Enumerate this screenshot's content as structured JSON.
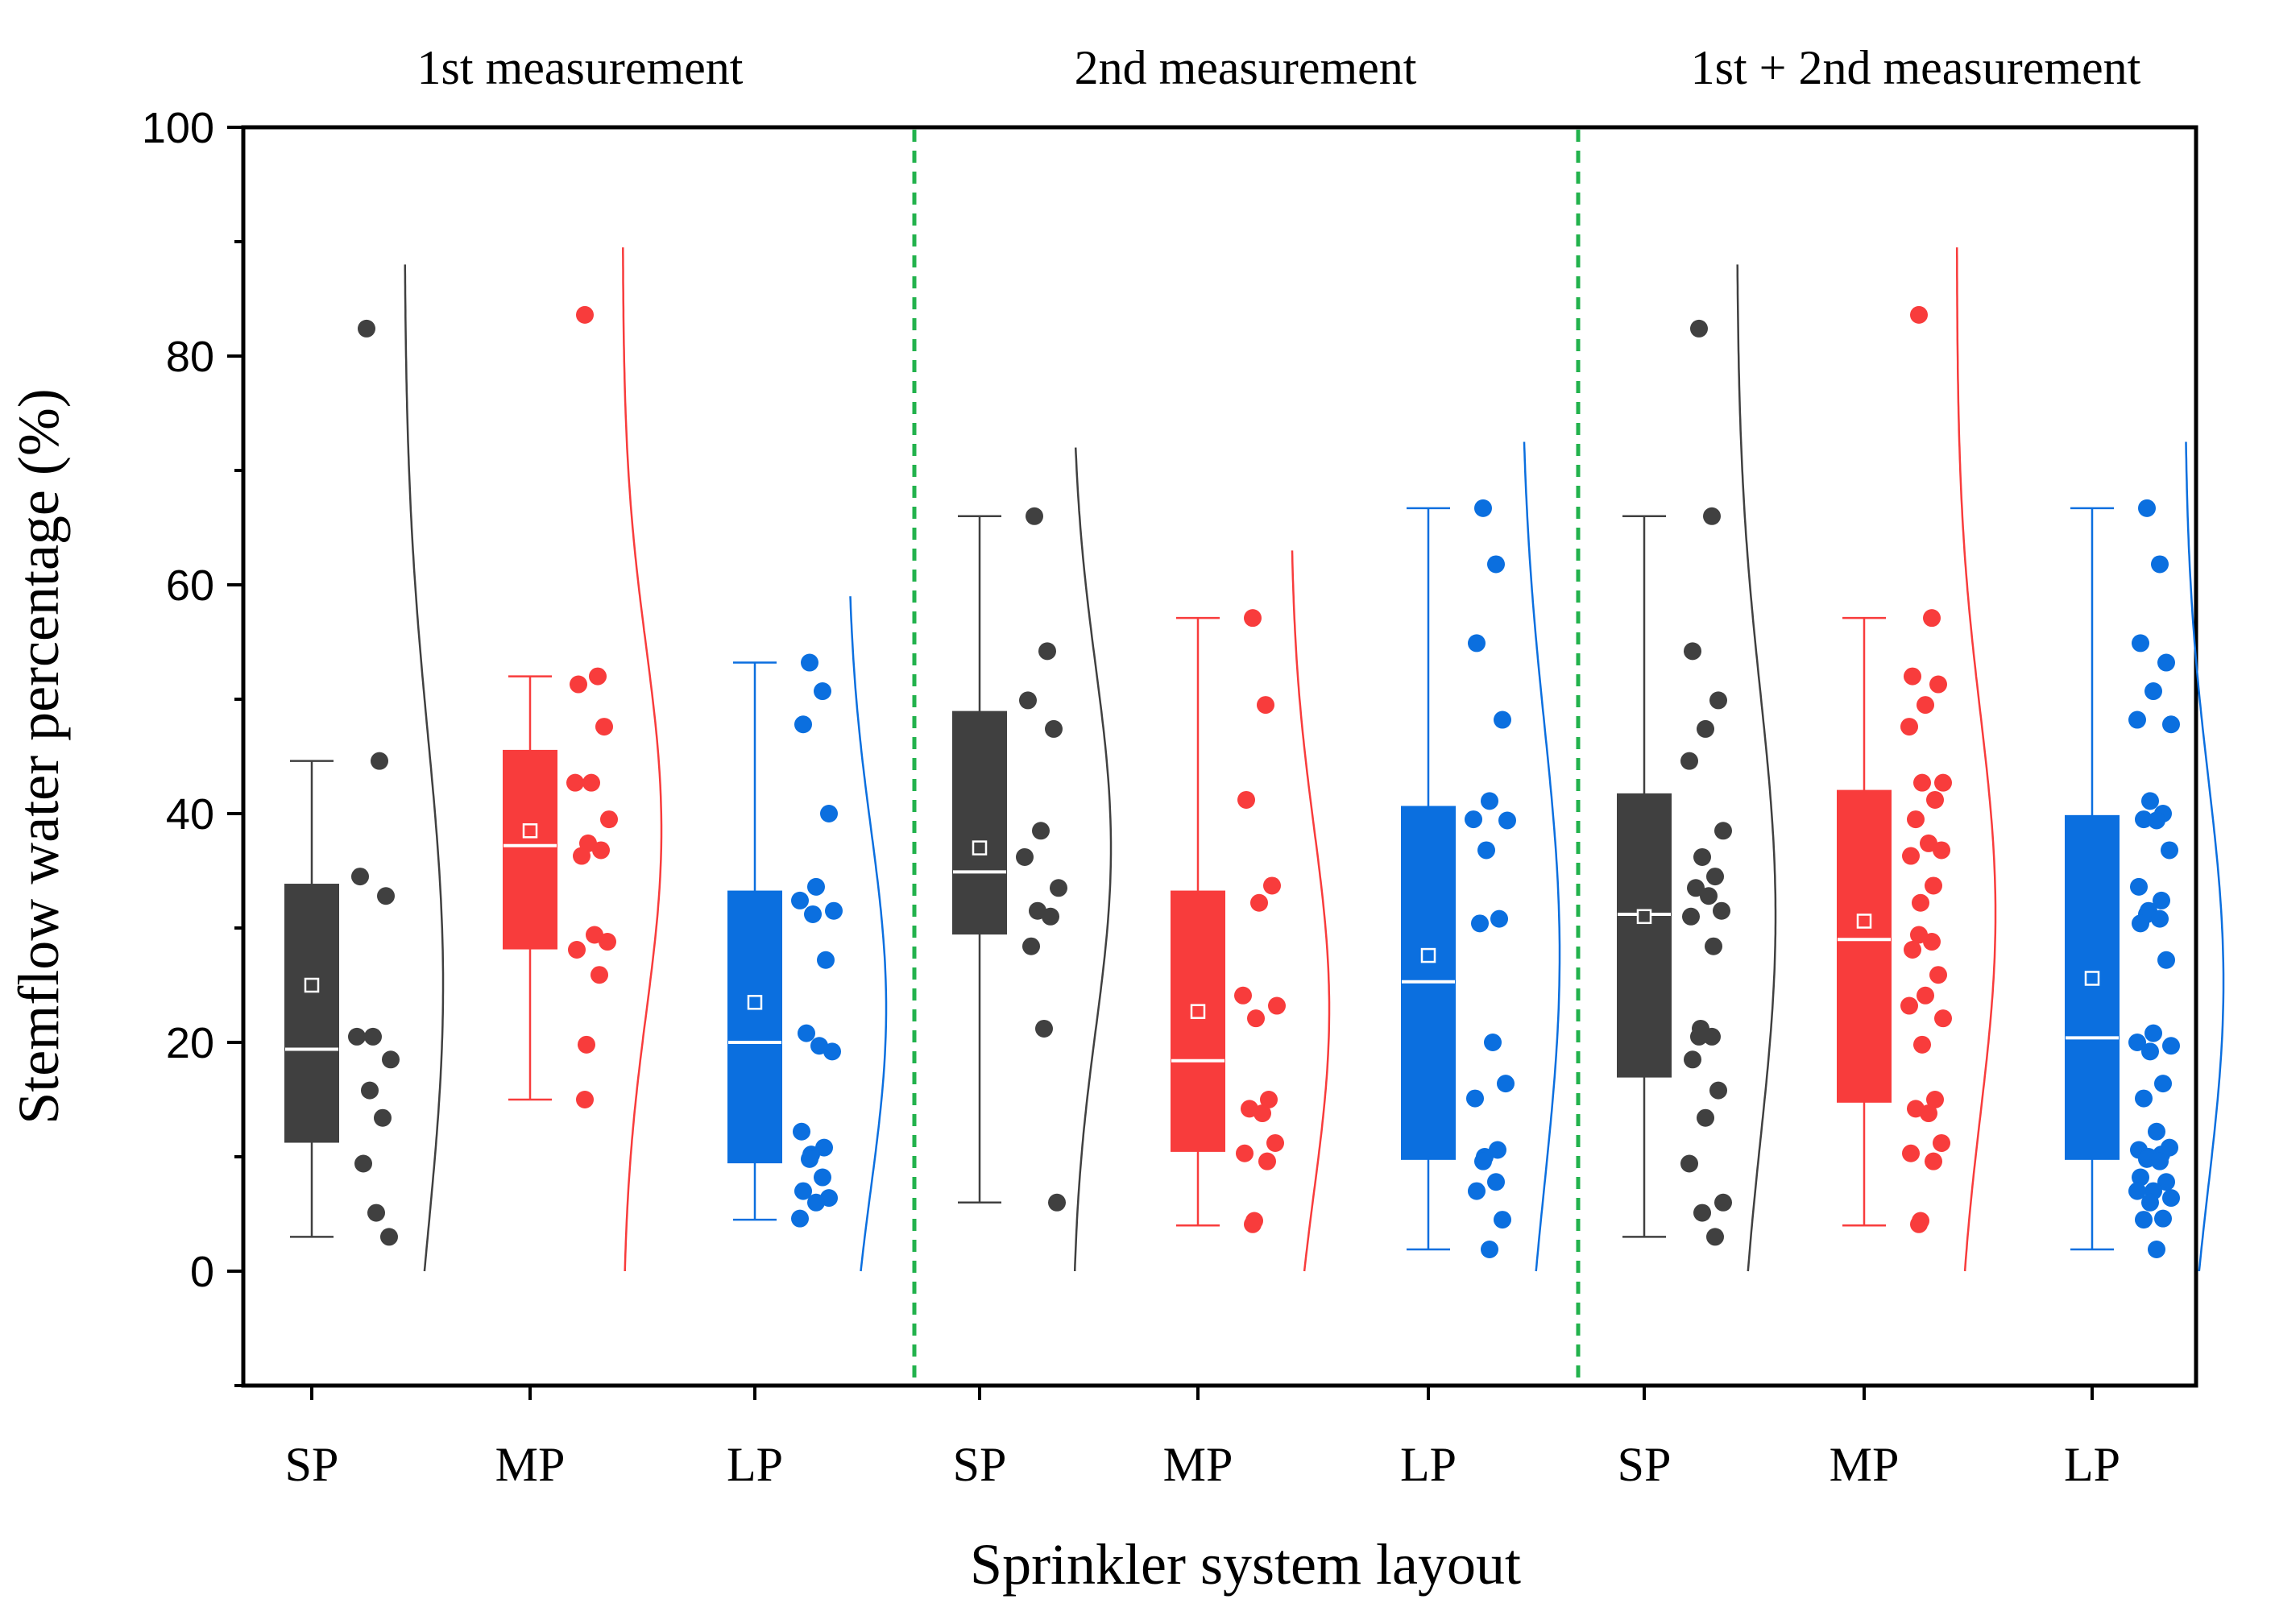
{
  "chart_data": {
    "type": "box",
    "title": "",
    "xlabel": "Sprinkler system layout",
    "ylabel": "Stemflow water percentage (%)",
    "ylim": [
      -10,
      100
    ],
    "yticks": [
      0,
      20,
      40,
      60,
      80,
      100
    ],
    "grid": false,
    "group_titles": [
      "1st measurement",
      "2nd measurement",
      "1st + 2nd measurement"
    ],
    "categories": [
      "SP",
      "MP",
      "LP"
    ],
    "colors": {
      "SP": "#404040",
      "MP": "#f83c3c",
      "LP": "#0b6fdf"
    },
    "divider_color": "#22b24c",
    "groups": [
      {
        "name": "1st measurement",
        "boxes": [
          {
            "category": "SP",
            "whisker_low": 3,
            "q1": 11.3,
            "median": 19.4,
            "q3": 33.8,
            "whisker_high": 44.6,
            "mean": 25,
            "points": [
              82.4,
              44.6,
              34.5,
              32.8,
              20.5,
              20.5,
              18.5,
              15.8,
              13.4,
              9.4,
              5.1,
              3
            ]
          },
          {
            "category": "MP",
            "whisker_low": 15,
            "q1": 28.2,
            "median": 37.2,
            "q3": 45.5,
            "whisker_high": 52,
            "mean": 38.5,
            "points": [
              83.6,
              52,
              51.3,
              47.6,
              42.7,
              42.7,
              39.5,
              37.4,
              36.8,
              36.3,
              29.4,
              28.8,
              28.1,
              25.9,
              19.8,
              15
            ]
          },
          {
            "category": "LP",
            "whisker_low": 4.5,
            "q1": 9.5,
            "median": 20,
            "q3": 33.2,
            "whisker_high": 53.2,
            "mean": 23.5,
            "points": [
              53.2,
              50.7,
              47.8,
              40,
              33.6,
              32.4,
              31.5,
              31.2,
              27.2,
              20.8,
              19.7,
              19.2,
              12.2,
              10.8,
              10.2,
              9.8,
              8.2,
              7,
              6.4,
              6,
              4.6
            ]
          }
        ]
      },
      {
        "name": "2nd measurement",
        "boxes": [
          {
            "category": "SP",
            "whisker_low": 6,
            "q1": 29.5,
            "median": 34.9,
            "q3": 48.9,
            "whisker_high": 66,
            "mean": 37,
            "points": [
              66,
              54.2,
              49.9,
              47.4,
              38.5,
              36.2,
              33.5,
              31.5,
              31,
              28.4,
              21.2,
              6
            ]
          },
          {
            "category": "MP",
            "whisker_low": 4,
            "q1": 10.5,
            "median": 18.4,
            "q3": 33.2,
            "whisker_high": 57.1,
            "mean": 22.7,
            "points": [
              57.1,
              49.5,
              41.2,
              33.7,
              32.2,
              24.1,
              23.2,
              22.1,
              15,
              14.2,
              13.8,
              11.2,
              10.3,
              9.6,
              4.4,
              4.1
            ]
          },
          {
            "category": "LP",
            "whisker_low": 1.9,
            "q1": 9.8,
            "median": 25.3,
            "q3": 40.6,
            "whisker_high": 66.7,
            "mean": 27.6,
            "points": [
              66.7,
              61.8,
              54.9,
              48.2,
              41.1,
              39.5,
              39.4,
              36.8,
              30.8,
              30.4,
              20,
              16.4,
              15.1,
              10.6,
              10,
              9.6,
              7.8,
              7,
              4.5,
              1.9
            ]
          }
        ]
      },
      {
        "name": "1st + 2nd measurement",
        "boxes": [
          {
            "category": "SP",
            "whisker_low": 3,
            "q1": 17,
            "median": 31.2,
            "q3": 41.7,
            "whisker_high": 66,
            "mean": 31,
            "points": [
              82.4,
              66,
              54.2,
              49.9,
              47.4,
              44.6,
              38.5,
              36.2,
              34.5,
              33.5,
              32.8,
              31.5,
              31,
              28.4,
              21.2,
              20.5,
              20.5,
              18.5,
              15.8,
              13.4,
              9.4,
              6,
              5.1,
              3
            ]
          },
          {
            "category": "MP",
            "whisker_low": 4,
            "q1": 14.8,
            "median": 29,
            "q3": 42,
            "whisker_high": 57.1,
            "mean": 30.6,
            "points": [
              83.6,
              57.1,
              52,
              51.3,
              49.5,
              47.6,
              42.7,
              42.7,
              41.2,
              39.5,
              37.4,
              36.8,
              36.3,
              33.7,
              32.2,
              29.4,
              28.8,
              28.1,
              25.9,
              24.1,
              23.2,
              22.1,
              19.8,
              15,
              14.2,
              13.8,
              11.2,
              10.3,
              9.6,
              4.4,
              4.1
            ]
          },
          {
            "category": "LP",
            "whisker_low": 1.9,
            "q1": 9.8,
            "median": 20.4,
            "q3": 39.8,
            "whisker_high": 66.7,
            "mean": 25.6,
            "points": [
              66.7,
              61.8,
              54.9,
              53.2,
              50.7,
              48.2,
              47.8,
              41.1,
              40,
              39.5,
              39.4,
              36.8,
              33.6,
              32.4,
              31.5,
              31.2,
              30.8,
              30.4,
              27.2,
              20.8,
              20,
              19.7,
              19.2,
              16.4,
              15.1,
              12.2,
              10.8,
              10.6,
              10.2,
              10,
              9.8,
              9.6,
              8.2,
              7.8,
              7,
              7,
              6.4,
              6,
              4.6,
              4.5,
              1.9
            ]
          }
        ]
      }
    ]
  }
}
